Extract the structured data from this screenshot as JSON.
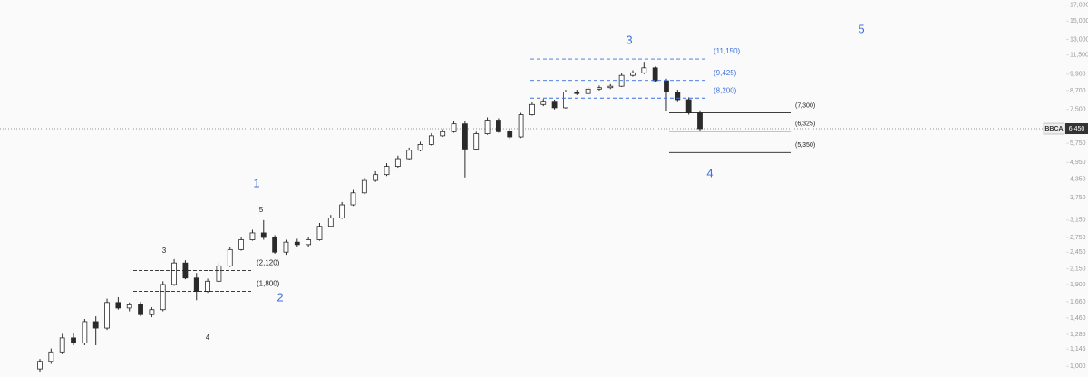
{
  "chart_data": {
    "type": "candlestick",
    "symbol": "BBCA",
    "last_price": {
      "value": 6450,
      "label": "6,450"
    },
    "log_scale": true,
    "ylim": [
      920,
      17700
    ],
    "yticks": [
      {
        "value": 1000,
        "label": "1,000"
      },
      {
        "value": 1145,
        "label": "1,145"
      },
      {
        "value": 1285,
        "label": "1,285"
      },
      {
        "value": 1460,
        "label": "1,460"
      },
      {
        "value": 1660,
        "label": "1,660"
      },
      {
        "value": 1900,
        "label": "1,900"
      },
      {
        "value": 2150,
        "label": "2,150"
      },
      {
        "value": 2450,
        "label": "2,450"
      },
      {
        "value": 2750,
        "label": "2,750"
      },
      {
        "value": 3150,
        "label": "3,150"
      },
      {
        "value": 3750,
        "label": "3,750"
      },
      {
        "value": 4350,
        "label": "4,350"
      },
      {
        "value": 4950,
        "label": "4,950"
      },
      {
        "value": 5750,
        "label": "5,750"
      },
      {
        "value": 7500,
        "label": "7,500"
      },
      {
        "value": 8700,
        "label": "8,700"
      },
      {
        "value": 9900,
        "label": "9,900"
      },
      {
        "value": 11500,
        "label": "11,500"
      },
      {
        "value": 13000,
        "label": "13,000"
      },
      {
        "value": 15000,
        "label": "15,000"
      },
      {
        "value": 17000,
        "label": "17,000"
      }
    ],
    "up_color": "#ffffff",
    "down_color": "#2a2a2a",
    "open": [
      980,
      1040,
      1120,
      1250,
      1200,
      1420,
      1350,
      1650,
      1580,
      1620,
      1500,
      1560,
      1900,
      2250,
      2000,
      1800,
      1950,
      2200,
      2500,
      2700,
      2850,
      2750,
      2450,
      2650,
      2600,
      2700,
      3000,
      3200,
      3550,
      3900,
      4300,
      4500,
      4800,
      5100,
      5450,
      5700,
      6100,
      6300,
      6700,
      5500,
      6200,
      6900,
      6300,
      6050,
      7200,
      7800,
      8000,
      7600,
      8600,
      8500,
      8800,
      8900,
      9000,
      9800,
      10000,
      10400,
      9400,
      8600,
      8100,
      7300
    ],
    "high": [
      1060,
      1150,
      1290,
      1300,
      1450,
      1480,
      1700,
      1720,
      1650,
      1660,
      1590,
      1950,
      2320,
      2300,
      2080,
      1990,
      2260,
      2560,
      2760,
      2920,
      3150,
      2800,
      2700,
      2720,
      2760,
      3080,
      3280,
      3630,
      3990,
      4400,
      4620,
      4920,
      5220,
      5560,
      5820,
      6230,
      6420,
      6850,
      6850,
      6300,
      7050,
      7000,
      6450,
      7300,
      7950,
      8150,
      8100,
      8750,
      8750,
      8950,
      9050,
      9150,
      9950,
      10200,
      10900,
      10500,
      9550,
      8750,
      8250,
      7450
    ],
    "low": [
      960,
      1020,
      1100,
      1180,
      1180,
      1180,
      1330,
      1560,
      1540,
      1480,
      1470,
      1540,
      1880,
      1980,
      1680,
      1780,
      1930,
      2180,
      2480,
      2680,
      2700,
      2420,
      2400,
      2560,
      2560,
      2680,
      2980,
      3180,
      3520,
      3860,
      4250,
      4450,
      4750,
      5050,
      5400,
      5650,
      6050,
      6250,
      4400,
      5450,
      6150,
      6250,
      5950,
      6000,
      7150,
      7700,
      7500,
      7550,
      8400,
      8450,
      8700,
      8800,
      8950,
      9700,
      9900,
      9300,
      7400,
      8000,
      7200,
      6350
    ],
    "close": [
      1040,
      1120,
      1250,
      1200,
      1420,
      1350,
      1650,
      1580,
      1620,
      1500,
      1560,
      1900,
      2250,
      2000,
      1800,
      1950,
      2200,
      2500,
      2700,
      2850,
      2750,
      2450,
      2650,
      2600,
      2700,
      3000,
      3200,
      3550,
      3900,
      4300,
      4500,
      4800,
      5100,
      5450,
      5700,
      6100,
      6300,
      6700,
      5500,
      6200,
      6900,
      6300,
      6050,
      7200,
      7800,
      8000,
      7600,
      8600,
      8500,
      8800,
      8900,
      9000,
      9800,
      10000,
      10400,
      9400,
      8600,
      8100,
      7300,
      6450
    ],
    "fib_levels": {
      "color": "#3d6fd9",
      "levels": [
        {
          "value": 11150,
          "label": "(11,150)"
        },
        {
          "value": 9425,
          "label": "(9,425)"
        },
        {
          "value": 8200,
          "label": "(8,200)"
        }
      ]
    },
    "support_levels": {
      "color": "#222222",
      "levels": [
        {
          "value": 2120,
          "label": "(2,120)"
        },
        {
          "value": 1800,
          "label": "(1,800)"
        }
      ]
    },
    "target_levels": {
      "color": "#222222",
      "levels": [
        {
          "value": 7300,
          "label": "(7,300)"
        },
        {
          "value": 6325,
          "label": "(6,325)"
        },
        {
          "value": 5350,
          "label": "(5,350)"
        }
      ]
    },
    "wave_labels": [
      "1",
      "2",
      "3",
      "4",
      "5"
    ],
    "subwave_labels": [
      "3",
      "5",
      "4"
    ],
    "wave_color": "#3d6fd9"
  }
}
